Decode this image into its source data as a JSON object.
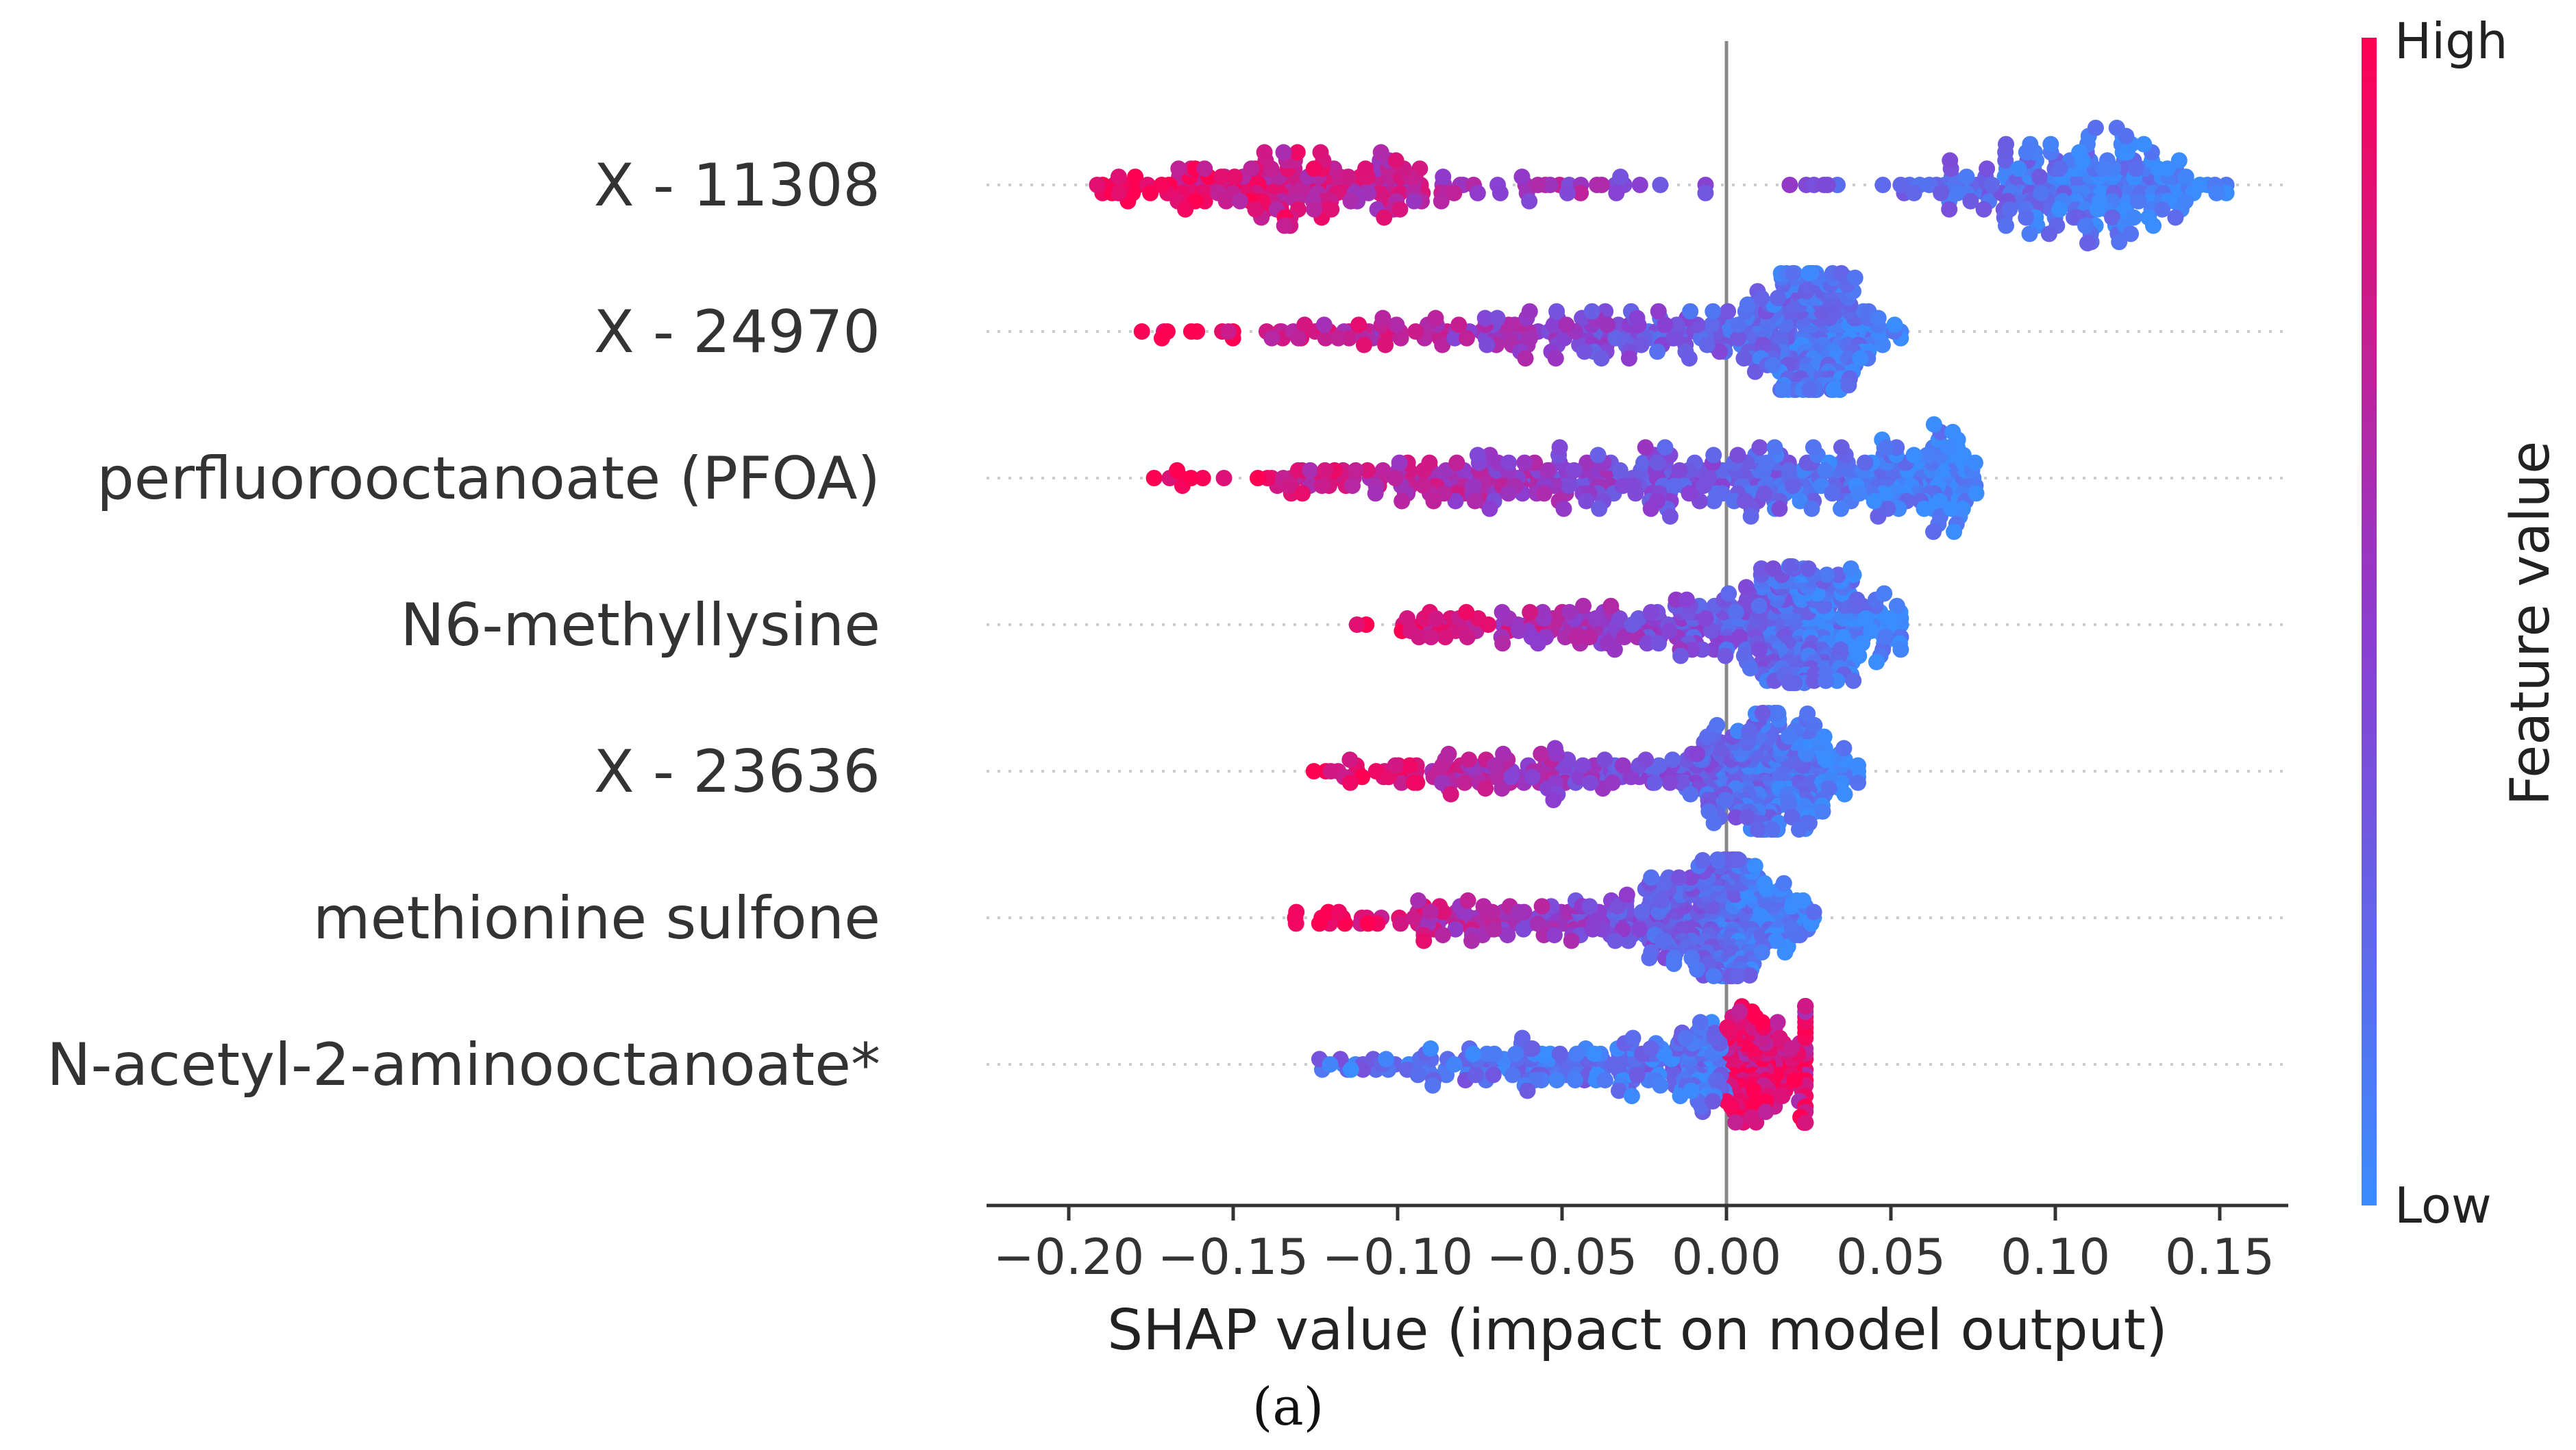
{
  "chart_data": {
    "type": "scatter",
    "subtype": "shap-beeswarm",
    "xlabel": "SHAP value (impact on model output)",
    "xlim": [
      -0.225,
      0.17
    ],
    "xticks": [
      -0.2,
      -0.15,
      -0.1,
      -0.05,
      0.0,
      0.05,
      0.1,
      0.15
    ],
    "xtick_labels": [
      "−0.20",
      "−0.15",
      "−0.10",
      "−0.05",
      "0.00",
      "0.05",
      "0.10",
      "0.15"
    ],
    "features": [
      {
        "name": "X - 11308",
        "min": -0.208,
        "max": 0.152,
        "mode": "bimodal",
        "peaks": [
          -0.13,
          0.11
        ],
        "spread": 0.85
      },
      {
        "name": "X - 24970",
        "min": -0.179,
        "max": 0.061,
        "mode": "right",
        "peaks": [
          -0.12,
          0.028
        ],
        "spread": 0.7
      },
      {
        "name": "perfluorooctanoate (PFOA)",
        "min": -0.18,
        "max": 0.076,
        "mode": "wide",
        "peaks": [
          -0.07,
          0.04
        ],
        "spread": 0.8
      },
      {
        "name": "N6-methyllysine",
        "min": -0.118,
        "max": 0.053,
        "mode": "right",
        "peaks": [
          -0.06,
          0.028
        ],
        "spread": 0.65
      },
      {
        "name": "X - 23636",
        "min": -0.13,
        "max": 0.04,
        "mode": "right",
        "peaks": [
          -0.07,
          0.017
        ],
        "spread": 0.6
      },
      {
        "name": "methionine sulfone",
        "min": -0.135,
        "max": 0.03,
        "mode": "right",
        "peaks": [
          -0.04,
          0.002
        ],
        "spread": 0.6
      },
      {
        "name": "N-acetyl-2-aminooctanoate*",
        "min": -0.128,
        "max": 0.024,
        "mode": "right-red",
        "peaks": [
          -0.02,
          0.007
        ],
        "spread": 0.55
      }
    ],
    "colorbar": {
      "label": "Feature value",
      "high": "High",
      "low": "Low",
      "high_color": "#ff0052",
      "mid_color": "#8d3ccf",
      "low_color": "#3b8cff"
    },
    "zero_line": 0.0,
    "gridlines": "dotted-horizontal"
  },
  "caption": "(a)"
}
